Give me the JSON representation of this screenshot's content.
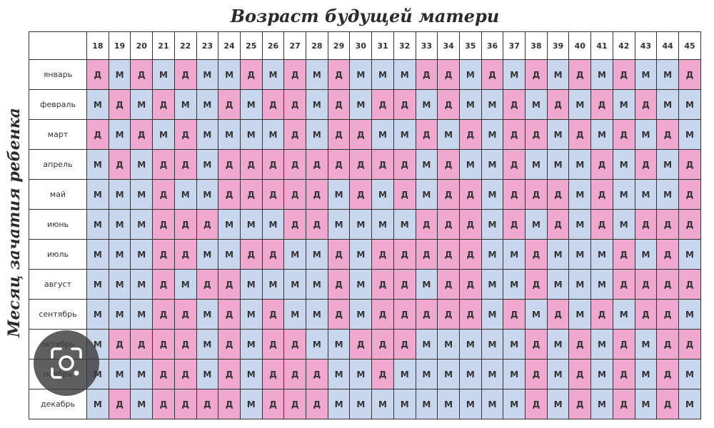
{
  "chart_data": {
    "type": "table",
    "title": "Возраст будущей матери",
    "ylabel": "Месяц зачатия ребенка",
    "ages": [
      "18",
      "19",
      "20",
      "21",
      "22",
      "23",
      "24",
      "25",
      "26",
      "27",
      "28",
      "29",
      "30",
      "31",
      "32",
      "33",
      "34",
      "35",
      "36",
      "37",
      "38",
      "39",
      "40",
      "41",
      "42",
      "43",
      "44",
      "45"
    ],
    "rows": [
      {
        "month": "январь",
        "values": [
          "Д",
          "М",
          "Д",
          "М",
          "Д",
          "М",
          "М",
          "Д",
          "М",
          "Д",
          "М",
          "Д",
          "М",
          "М",
          "М",
          "Д",
          "Д",
          "М",
          "Д",
          "М",
          "Д",
          "М",
          "Д",
          "М",
          "Д",
          "М",
          "М",
          "Д"
        ]
      },
      {
        "month": "февраль",
        "values": [
          "М",
          "Д",
          "М",
          "Д",
          "М",
          "М",
          "Д",
          "М",
          "Д",
          "Д",
          "М",
          "Д",
          "М",
          "Д",
          "Д",
          "М",
          "Д",
          "М",
          "М",
          "Д",
          "М",
          "Д",
          "М",
          "Д",
          "М",
          "Д",
          "М",
          "М"
        ]
      },
      {
        "month": "март",
        "values": [
          "Д",
          "М",
          "Д",
          "М",
          "Д",
          "М",
          "М",
          "М",
          "М",
          "Д",
          "М",
          "Д",
          "Д",
          "М",
          "М",
          "Д",
          "М",
          "Д",
          "М",
          "Д",
          "Д",
          "М",
          "Д",
          "М",
          "Д",
          "М",
          "Д",
          "М"
        ]
      },
      {
        "month": "апрель",
        "values": [
          "М",
          "Д",
          "М",
          "Д",
          "Д",
          "М",
          "Д",
          "Д",
          "Д",
          "Д",
          "Д",
          "Д",
          "Д",
          "Д",
          "Д",
          "М",
          "Д",
          "М",
          "М",
          "Д",
          "М",
          "М",
          "М",
          "Д",
          "М",
          "Д",
          "М",
          "Д"
        ]
      },
      {
        "month": "май",
        "values": [
          "М",
          "М",
          "М",
          "Д",
          "М",
          "М",
          "Д",
          "Д",
          "Д",
          "Д",
          "Д",
          "М",
          "Д",
          "М",
          "Д",
          "М",
          "Д",
          "Д",
          "М",
          "Д",
          "Д",
          "Д",
          "М",
          "Д",
          "М",
          "М",
          "М",
          "Д"
        ]
      },
      {
        "month": "июнь",
        "values": [
          "М",
          "М",
          "М",
          "Д",
          "Д",
          "Д",
          "М",
          "М",
          "М",
          "Д",
          "Д",
          "М",
          "М",
          "М",
          "М",
          "Д",
          "Д",
          "Д",
          "М",
          "Д",
          "М",
          "Д",
          "М",
          "Д",
          "М",
          "Д",
          "Д",
          "Д"
        ]
      },
      {
        "month": "июль",
        "values": [
          "М",
          "М",
          "М",
          "Д",
          "Д",
          "М",
          "М",
          "Д",
          "Д",
          "М",
          "М",
          "Д",
          "М",
          "Д",
          "Д",
          "Д",
          "Д",
          "Д",
          "М",
          "М",
          "Д",
          "М",
          "М",
          "М",
          "Д",
          "М",
          "Д",
          "М"
        ]
      },
      {
        "month": "август",
        "values": [
          "М",
          "М",
          "М",
          "Д",
          "М",
          "Д",
          "Д",
          "М",
          "М",
          "М",
          "М",
          "Д",
          "М",
          "Д",
          "Д",
          "М",
          "Д",
          "Д",
          "М",
          "М",
          "Д",
          "М",
          "М",
          "М",
          "Д",
          "Д",
          "Д",
          "Д"
        ]
      },
      {
        "month": "сентябрь",
        "values": [
          "М",
          "М",
          "М",
          "Д",
          "Д",
          "М",
          "Д",
          "М",
          "Д",
          "М",
          "М",
          "Д",
          "М",
          "Д",
          "Д",
          "Д",
          "Д",
          "Д",
          "М",
          "Д",
          "М",
          "Д",
          "М",
          "Д",
          "М",
          "Д",
          "Д",
          "М"
        ]
      },
      {
        "month": "октябрь",
        "values": [
          "М",
          "Д",
          "Д",
          "Д",
          "Д",
          "М",
          "Д",
          "М",
          "Д",
          "Д",
          "М",
          "М",
          "Д",
          "Д",
          "Д",
          "М",
          "М",
          "М",
          "М",
          "М",
          "Д",
          "М",
          "Д",
          "М",
          "Д",
          "М",
          "Д",
          "Д"
        ]
      },
      {
        "month": "ноябрь",
        "values": [
          "М",
          "М",
          "М",
          "Д",
          "Д",
          "М",
          "Д",
          "М",
          "Д",
          "Д",
          "Д",
          "М",
          "М",
          "Д",
          "М",
          "М",
          "М",
          "М",
          "М",
          "М",
          "Д",
          "М",
          "Д",
          "М",
          "Д",
          "М",
          "Д",
          "М"
        ]
      },
      {
        "month": "декабрь",
        "values": [
          "М",
          "Д",
          "М",
          "Д",
          "Д",
          "Д",
          "Д",
          "М",
          "Д",
          "Д",
          "Д",
          "М",
          "М",
          "М",
          "М",
          "М",
          "М",
          "М",
          "М",
          "М",
          "Д",
          "М",
          "Д",
          "М",
          "Д",
          "М",
          "Д",
          "М"
        ]
      }
    ],
    "colors": {
      "М": "#c9d7ee",
      "Д": "#f1a8cf"
    }
  },
  "overlay": {
    "icon": "google-lens-icon"
  }
}
